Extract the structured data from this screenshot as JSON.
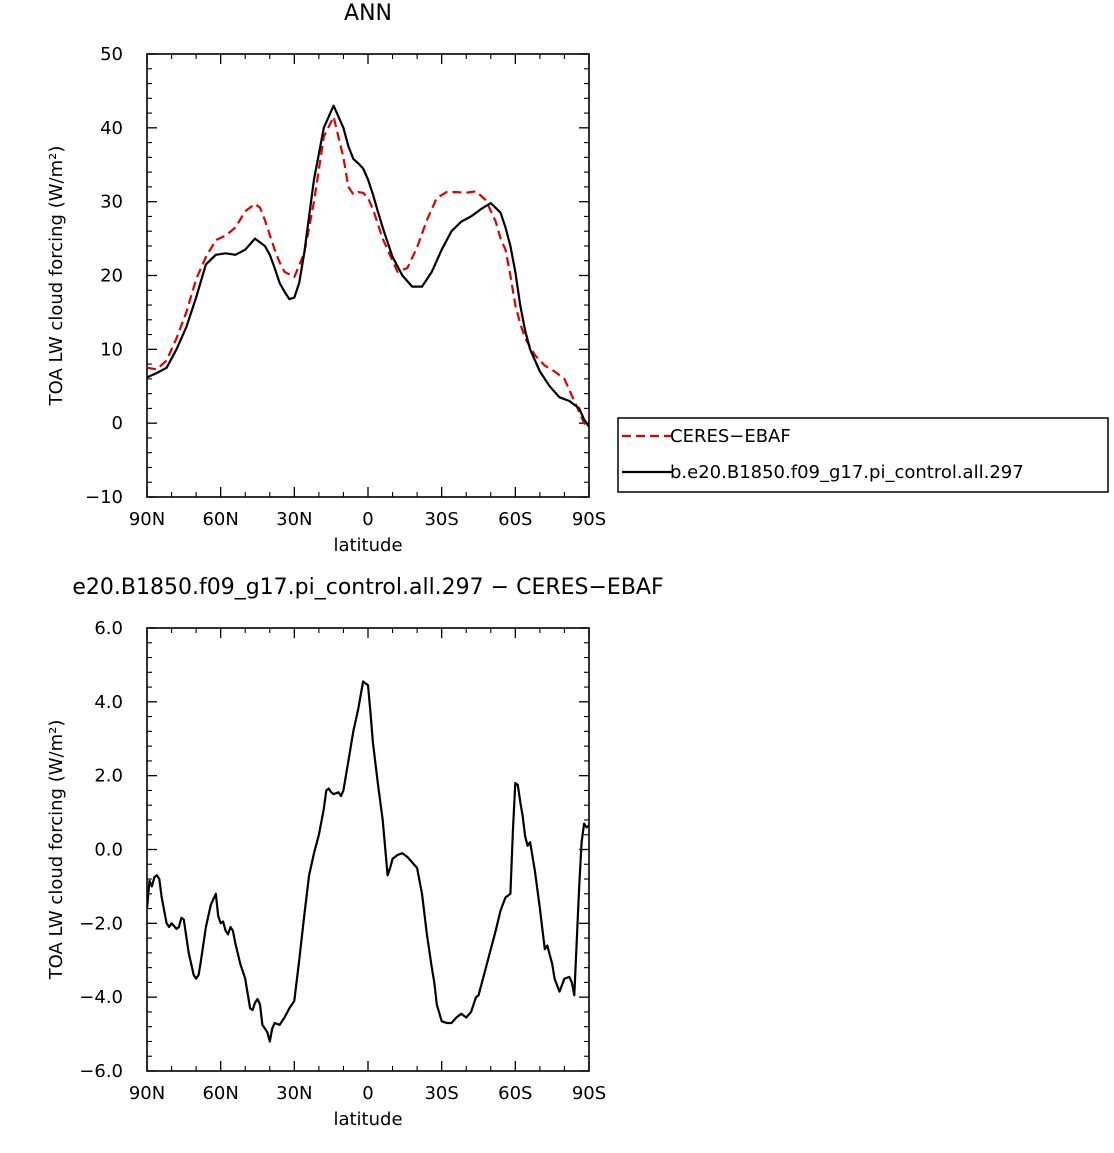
{
  "chart_data": [
    {
      "type": "line",
      "title": "ANN",
      "xlabel": "latitude",
      "ylabel": "TOA LW cloud forcing (W/m²)",
      "xlim": [
        90,
        -90
      ],
      "ylim": [
        -10,
        50
      ],
      "xticks": [
        90,
        60,
        30,
        0,
        -30,
        -60,
        -90
      ],
      "xtick_labels": [
        "90N",
        "60N",
        "30N",
        "0",
        "30S",
        "60S",
        "90S"
      ],
      "yticks": [
        -10,
        0,
        10,
        20,
        30,
        40,
        50
      ],
      "ytick_labels": [
        "−10",
        "0",
        "10",
        "20",
        "30",
        "40",
        "50"
      ],
      "legend_placement": "right",
      "grid": false,
      "series": [
        {
          "name": "CERES−EBAF",
          "color": "#e00000",
          "style": "dashed",
          "x": [
            90,
            86,
            82,
            78,
            74,
            70,
            66,
            62,
            58,
            54,
            50,
            46,
            44,
            42,
            40,
            38,
            36,
            34,
            30,
            26,
            22,
            18,
            14,
            10,
            8,
            6,
            4,
            2,
            0,
            -2,
            -4,
            -6,
            -8,
            -12,
            -16,
            -20,
            -24,
            -28,
            -32,
            -36,
            -40,
            -44,
            -48,
            -52,
            -54,
            -56,
            -58,
            -60,
            -62,
            -64,
            -68,
            -72,
            -76,
            -80,
            -84,
            -88,
            -90
          ],
          "y": [
            7.5,
            7.3,
            8.5,
            11.5,
            15,
            19.5,
            22.5,
            24.8,
            25.4,
            26.5,
            28.7,
            29.7,
            29.2,
            27.5,
            25.5,
            23.5,
            21.8,
            20.5,
            19.8,
            23,
            30,
            38.8,
            41.5,
            36,
            32,
            31,
            31.3,
            31.2,
            30.5,
            29,
            27,
            25,
            23.5,
            20.5,
            21,
            23.8,
            27.5,
            30.5,
            31.3,
            31.3,
            31.2,
            31.4,
            30.2,
            27.3,
            25,
            23.5,
            20,
            16,
            13.5,
            11.5,
            9.2,
            7.8,
            7.0,
            6.0,
            3.0,
            0.0,
            -0.5
          ]
        },
        {
          "name": "b.e20.B1850.f09_g17.pi_control.all.297",
          "color": "#000000",
          "style": "solid",
          "x": [
            90,
            86,
            82,
            78,
            74,
            70,
            66,
            62,
            58,
            54,
            50,
            46,
            42,
            40,
            38,
            36,
            34,
            32,
            30,
            28,
            26,
            24,
            22,
            18,
            14,
            10,
            8,
            6,
            4,
            2,
            0,
            -2,
            -4,
            -6,
            -8,
            -10,
            -14,
            -18,
            -22,
            -26,
            -30,
            -34,
            -38,
            -42,
            -46,
            -50,
            -54,
            -56,
            -58,
            -60,
            -62,
            -64,
            -66,
            -70,
            -74,
            -78,
            -82,
            -86,
            -88,
            -90
          ],
          "y": [
            6.2,
            6.8,
            7.5,
            10,
            13,
            17,
            21.5,
            22.8,
            23,
            22.8,
            23.5,
            25,
            24,
            22.8,
            21,
            19,
            17.8,
            16.8,
            17,
            19,
            23,
            28,
            33,
            40,
            43,
            40,
            37.5,
            35.8,
            35.2,
            34.5,
            33,
            31,
            28.7,
            26.5,
            24.5,
            22.5,
            20,
            18.5,
            18.5,
            20.5,
            23.5,
            26,
            27.3,
            28,
            29,
            29.8,
            28.5,
            26.5,
            24,
            20.5,
            16,
            12.5,
            10,
            7,
            5,
            3.5,
            3.0,
            2.0,
            0.5,
            -0.5
          ]
        }
      ]
    },
    {
      "type": "line",
      "title": "e20.B1850.f09_g17.pi_control.all.297 − CERES−EBAF",
      "xlabel": "latitude",
      "ylabel": "TOA LW cloud forcing (W/m²)",
      "xlim": [
        90,
        -90
      ],
      "ylim": [
        -6.0,
        6.0
      ],
      "xticks": [
        90,
        60,
        30,
        0,
        -30,
        -60,
        -90
      ],
      "xtick_labels": [
        "90N",
        "60N",
        "30N",
        "0",
        "30S",
        "60S",
        "90S"
      ],
      "yticks": [
        -6,
        -4,
        -2,
        0,
        2,
        4,
        6
      ],
      "ytick_labels": [
        "−6.0",
        "−4.0",
        "−2.0",
        "0.0",
        "2.0",
        "4.0",
        "6.0"
      ],
      "grid": false,
      "series": [
        {
          "color": "#000000",
          "style": "solid",
          "x": [
            90,
            89,
            88,
            87,
            86,
            85,
            84,
            82,
            81,
            80,
            78,
            77,
            76,
            75,
            73,
            71,
            70,
            69,
            68,
            66,
            64,
            62,
            61,
            60,
            59,
            58,
            57,
            56,
            55,
            54,
            52,
            50,
            48,
            47,
            46,
            45,
            44,
            43,
            42,
            41,
            40,
            39,
            38,
            36,
            34,
            32,
            30,
            28,
            26,
            24,
            22,
            20,
            18,
            17,
            16,
            15,
            14,
            12,
            11,
            10,
            8,
            6,
            4,
            2,
            0,
            -1,
            -2,
            -4,
            -6,
            -8,
            -9,
            -10,
            -11,
            -12,
            -14,
            -16,
            -18,
            -20,
            -22,
            -24,
            -26,
            -27,
            -28,
            -30,
            -32,
            -34,
            -36,
            -38,
            -40,
            -42,
            -44,
            -45,
            -46,
            -48,
            -50,
            -52,
            -54,
            -56,
            -58,
            -59,
            -60,
            -61,
            -62,
            -63,
            -64,
            -65,
            -66,
            -68,
            -70,
            -72,
            -73,
            -74,
            -75,
            -76,
            -78,
            -80,
            -82,
            -83,
            -84,
            -85,
            -86,
            -87,
            -88,
            -89,
            -90
          ],
          "y": [
            -1.6,
            -0.85,
            -1.0,
            -0.75,
            -0.7,
            -0.8,
            -1.3,
            -2.0,
            -2.1,
            -2.0,
            -2.15,
            -2.1,
            -1.85,
            -1.9,
            -2.8,
            -3.4,
            -3.5,
            -3.4,
            -3.0,
            -2.1,
            -1.5,
            -1.2,
            -1.8,
            -2.0,
            -1.95,
            -2.2,
            -2.3,
            -2.1,
            -2.2,
            -2.55,
            -3.1,
            -3.5,
            -4.3,
            -4.35,
            -4.15,
            -4.05,
            -4.2,
            -4.75,
            -4.85,
            -4.95,
            -5.2,
            -4.85,
            -4.7,
            -4.75,
            -4.55,
            -4.3,
            -4.1,
            -3.0,
            -1.8,
            -0.7,
            -0.1,
            0.4,
            1.1,
            1.6,
            1.65,
            1.55,
            1.5,
            1.55,
            1.45,
            1.6,
            2.4,
            3.2,
            3.8,
            4.55,
            4.45,
            3.7,
            2.9,
            1.8,
            0.8,
            -0.7,
            -0.5,
            -0.25,
            -0.2,
            -0.15,
            -0.1,
            -0.2,
            -0.35,
            -0.5,
            -1.2,
            -2.3,
            -3.2,
            -3.6,
            -4.2,
            -4.65,
            -4.7,
            -4.7,
            -4.55,
            -4.45,
            -4.55,
            -4.4,
            -4.0,
            -3.95,
            -3.7,
            -3.2,
            -2.7,
            -2.2,
            -1.65,
            -1.3,
            -1.2,
            0.5,
            1.8,
            1.75,
            1.3,
            0.9,
            0.35,
            0.1,
            0.2,
            -0.6,
            -1.6,
            -2.7,
            -2.6,
            -2.85,
            -3.1,
            -3.5,
            -3.85,
            -3.5,
            -3.45,
            -3.6,
            -3.95,
            -2.5,
            -1.0,
            0.2,
            0.7,
            0.6,
            0.65
          ]
        }
      ]
    }
  ]
}
